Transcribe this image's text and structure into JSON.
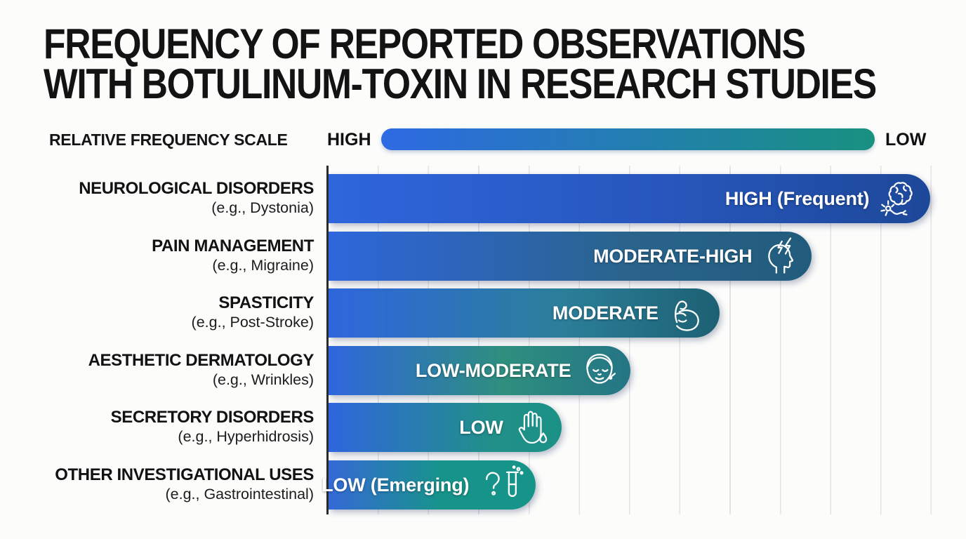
{
  "title": {
    "line1": "FREQUENCY OF REPORTED OBSERVATIONS",
    "line2": "WITH BOTULINUM-TOXIN IN RESEARCH STUDIES"
  },
  "scale": {
    "label": "RELATIVE FREQUENCY SCALE",
    "high": "HIGH",
    "low": "LOW",
    "gradient_start": "#2e6ae3",
    "gradient_end": "#18917f"
  },
  "colors": {
    "background": "#fcfcfb",
    "text": "#131313",
    "gridline": "#e3e3e7",
    "axis": "#2c2c2c",
    "bar_label": "#ffffff"
  },
  "chart_data": {
    "type": "bar",
    "orientation": "horizontal",
    "title": "FREQUENCY OF REPORTED OBSERVATIONS WITH BOTULINUM-TOXIN IN RESEARCH STUDIES",
    "xlabel": "RELATIVE FREQUENCY SCALE (HIGH → LOW)",
    "grid": true,
    "legend": false,
    "xlim_pct": [
      0,
      100
    ],
    "categories": [
      "NEUROLOGICAL DISORDERS",
      "PAIN MANAGEMENT",
      "SPASTICITY",
      "AESTHETIC DERMATOLOGY",
      "SECRETORY DISORDERS",
      "OTHER INVESTIGATIONAL USES"
    ],
    "values_qualitative": [
      "HIGH (Frequent)",
      "MODERATE-HIGH",
      "MODERATE",
      "LOW-MODERATE",
      "LOW",
      "LOW (Emerging)"
    ],
    "values_relative_pct": [
      99,
      79.5,
      64.3,
      49.7,
      38.3,
      34.1
    ],
    "rows": [
      {
        "category": "NEUROLOGICAL DISORDERS",
        "example": "(e.g., Dystonia)",
        "value_label": "HIGH (Frequent)",
        "icon": "brain-neuron-icon",
        "width_pct": 99.0,
        "colors": [
          "#2f66dd",
          "#2757bd 55%",
          "#1d4899"
        ]
      },
      {
        "category": "PAIN MANAGEMENT",
        "example": "(e.g., Migraine)",
        "value_label": "MODERATE-HIGH",
        "icon": "headache-lightning-icon",
        "width_pct": 79.5,
        "colors": [
          "#2f66dd",
          "#2a648e 60%",
          "#215c7c"
        ]
      },
      {
        "category": "SPASTICITY",
        "example": "(e.g., Post-Stroke)",
        "value_label": "MODERATE",
        "icon": "muscle-arm-icon",
        "width_pct": 64.3,
        "colors": [
          "#2f66dd",
          "#2b7f99 60%",
          "#1d6073"
        ]
      },
      {
        "category": "AESTHETIC DERMATOLOGY",
        "example": "(e.g., Wrinkles)",
        "value_label": "LOW-MODERATE",
        "icon": "face-icon",
        "width_pct": 49.7,
        "colors": [
          "#2f66dd",
          "#2e8f7e 58%",
          "#247585"
        ]
      },
      {
        "category": "SECRETORY DISORDERS",
        "example": "(e.g., Hyperhidrosis)",
        "value_label": "LOW",
        "icon": "hand-droplet-icon",
        "width_pct": 38.3,
        "colors": [
          "#2f66dd",
          "#219089 70%",
          "#1b9186"
        ]
      },
      {
        "category": "OTHER INVESTIGATIONAL USES",
        "example": "(e.g., Gastrointestinal)",
        "value_label": "LOW (Emerging)",
        "icon": "question-test-tube-icon",
        "width_pct": 34.1,
        "colors": [
          "#3569d6",
          "#17948a 55%",
          "#17948a"
        ]
      }
    ]
  }
}
